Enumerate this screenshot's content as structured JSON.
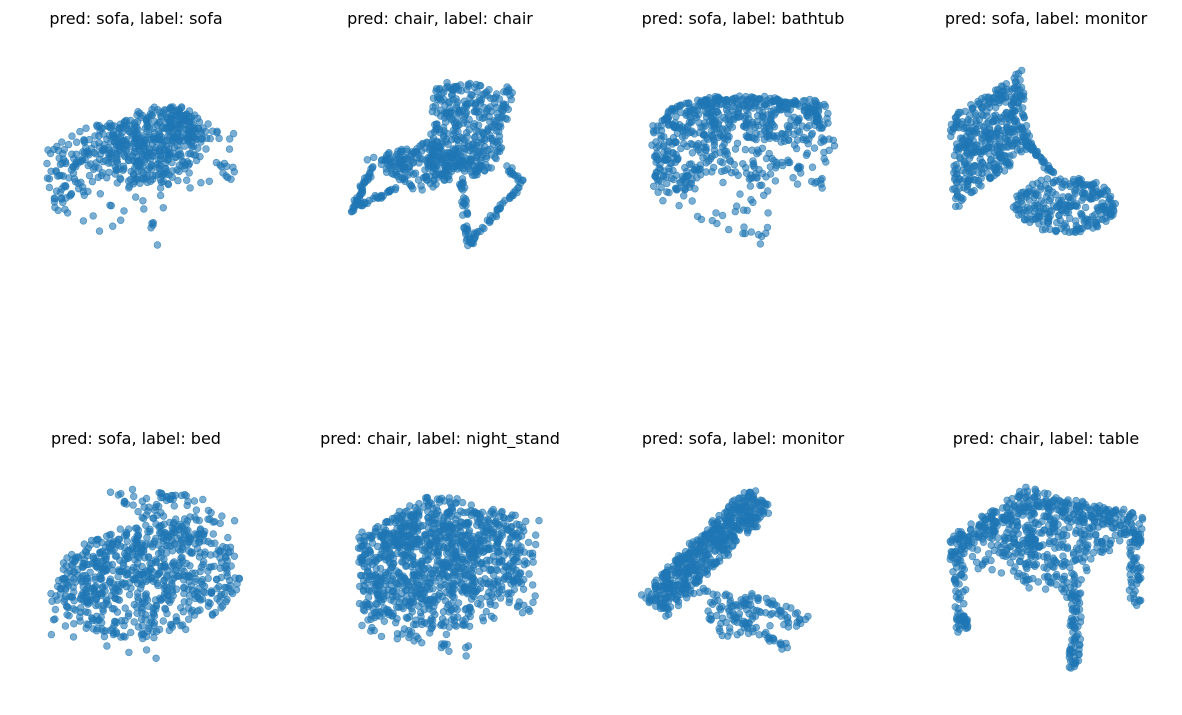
{
  "figure": {
    "point_color": "#1f77b4",
    "point_alpha": 0.6,
    "axes_visible": false
  },
  "chart_data": [
    {
      "type": "scatter",
      "projection": "3d",
      "title": "pred: sofa, label: sofa",
      "shape": "sofa"
    },
    {
      "type": "scatter",
      "projection": "3d",
      "title": "pred: chair, label: chair",
      "shape": "chair"
    },
    {
      "type": "scatter",
      "projection": "3d",
      "title": "pred: sofa, label: bathtub",
      "shape": "bathtub"
    },
    {
      "type": "scatter",
      "projection": "3d",
      "title": "pred: sofa, label: monitor",
      "shape": "monitor_a"
    },
    {
      "type": "scatter",
      "projection": "3d",
      "title": "pred: sofa, label: bed",
      "shape": "bed"
    },
    {
      "type": "scatter",
      "projection": "3d",
      "title": "pred: chair, label: night_stand",
      "shape": "night_stand"
    },
    {
      "type": "scatter",
      "projection": "3d",
      "title": "pred: sofa, label: monitor",
      "shape": "monitor_b"
    },
    {
      "type": "scatter",
      "projection": "3d",
      "title": "pred: chair, label: table",
      "shape": "table"
    }
  ]
}
